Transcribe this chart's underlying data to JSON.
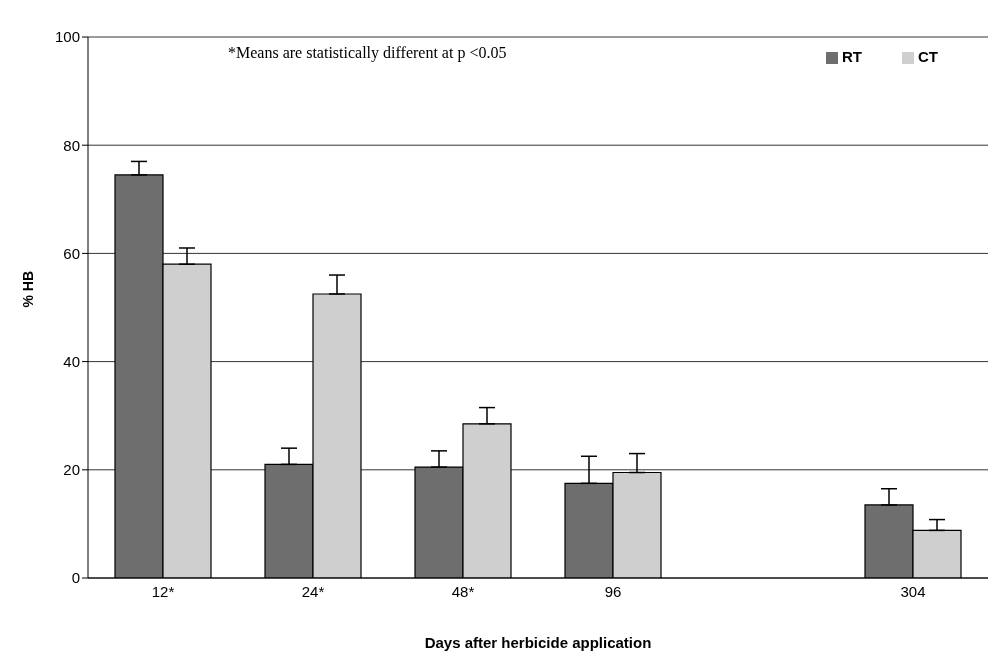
{
  "chart_data": {
    "type": "bar",
    "xlabel": "Days after herbicide application",
    "ylabel": "% HB",
    "categories": [
      "12*",
      "24*",
      "48*",
      "96",
      null,
      "304"
    ],
    "series": [
      {
        "name": "RT",
        "color": "#6e6e6e",
        "values": [
          74.5,
          21,
          20.5,
          17.5,
          null,
          13.5
        ],
        "errors": [
          [
            74.5,
            77
          ],
          [
            21,
            24
          ],
          [
            20.5,
            23.5
          ],
          [
            17.5,
            22.5
          ],
          null,
          [
            13.5,
            16.5
          ]
        ]
      },
      {
        "name": "CT",
        "color": "#cfcfcf",
        "values": [
          58,
          52.5,
          28.5,
          19.5,
          null,
          8.8
        ],
        "errors": [
          [
            58,
            61
          ],
          [
            52.5,
            56
          ],
          [
            28.5,
            31.5
          ],
          [
            19.5,
            23
          ],
          null,
          [
            8.8,
            10.8
          ]
        ]
      }
    ],
    "ylim": [
      0,
      100
    ],
    "yticks": [
      0,
      20,
      40,
      60,
      80,
      100
    ],
    "grid": "y",
    "legend": "top right",
    "annotations": [
      "*Means are statistically different at p <0.05"
    ]
  }
}
